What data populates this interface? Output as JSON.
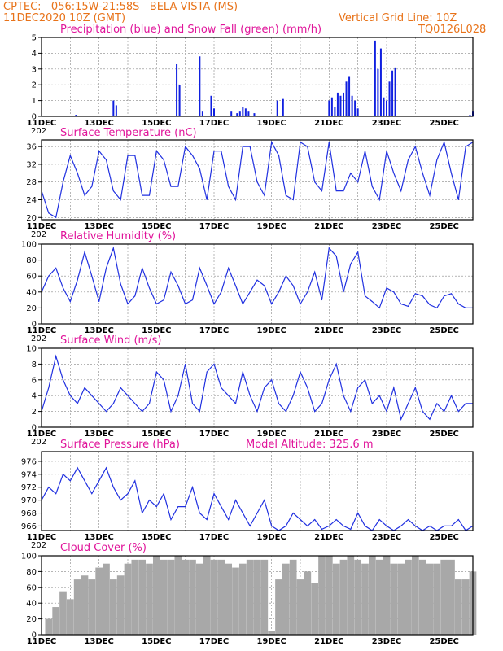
{
  "header": {
    "line1": "CPTEC:   056:15W-21:58S   BELA VISTA (MS)",
    "line2": "11DEC2020 10Z (GMT)",
    "grid_note": "Vertical Grid Line: 10Z",
    "code": "TQ0126L028"
  },
  "colors": {
    "line": "#2030e0",
    "precip": "#1020e0",
    "snow": "#20b020",
    "cloud": "#a8a8a8",
    "title": "#e0149a",
    "header": "#e8731a"
  },
  "x_labels": [
    "11DEC",
    "13DEC",
    "15DEC",
    "17DEC",
    "19DEC",
    "21DEC",
    "23DEC",
    "25DEC"
  ],
  "year_label": "202",
  "chart_data": [
    {
      "type": "bar",
      "title": "Precipitation (blue) and Snow Fall (green) (mm/h)",
      "ylim": [
        0,
        5
      ],
      "yticks": [
        "5",
        "4",
        "3",
        "2",
        "1",
        "0"
      ],
      "x": [
        1.2,
        1.7,
        2.5,
        2.6,
        4.7,
        4.8,
        5.5,
        5.6,
        5.9,
        6.0,
        6.6,
        6.8,
        6.9,
        7.0,
        7.1,
        7.2,
        7.4,
        8.2,
        8.4,
        10.0,
        10.1,
        10.2,
        10.3,
        10.4,
        10.5,
        10.6,
        10.7,
        10.8,
        10.9,
        11.0,
        11.6,
        11.7,
        11.8,
        11.9,
        12.0,
        12.1,
        12.2,
        12.3,
        14.9,
        15.0
      ],
      "values": [
        0.1,
        0.05,
        1.0,
        0.7,
        3.3,
        2.0,
        3.8,
        0.3,
        1.3,
        0.5,
        0.3,
        0.2,
        0.3,
        0.6,
        0.5,
        0.3,
        0.2,
        1.0,
        1.1,
        1.0,
        1.2,
        0.6,
        1.5,
        1.3,
        1.5,
        2.2,
        2.5,
        1.3,
        1.0,
        0.5,
        4.8,
        3.0,
        4.3,
        1.2,
        1.0,
        2.2,
        2.9,
        3.1,
        0.1,
        0.3
      ],
      "snow_values": []
    },
    {
      "type": "line",
      "title": "Surface Temperature (nC)",
      "ylim": [
        19.5,
        37.5
      ],
      "yticks": [
        "36",
        "32",
        "28",
        "24",
        "20"
      ],
      "ytick_values": [
        36,
        32,
        28,
        24,
        20
      ],
      "x": [
        0,
        0.25,
        0.5,
        0.75,
        1.0,
        1.25,
        1.5,
        1.75,
        2.0,
        2.25,
        2.5,
        2.75,
        3.0,
        3.25,
        3.5,
        3.75,
        4.0,
        4.25,
        4.5,
        4.75,
        5.0,
        5.25,
        5.5,
        5.75,
        6.0,
        6.25,
        6.5,
        6.75,
        7.0,
        7.25,
        7.5,
        7.75,
        8.0,
        8.25,
        8.5,
        8.75,
        9.0,
        9.25,
        9.5,
        9.75,
        10.0,
        10.25,
        10.5,
        10.75,
        11.0,
        11.25,
        11.5,
        11.75,
        12.0,
        12.25,
        12.5,
        12.75,
        13.0,
        13.25,
        13.5,
        13.75,
        14.0,
        14.25,
        14.5,
        14.75,
        15.0
      ],
      "values": [
        26,
        21,
        20,
        28,
        34,
        30,
        25,
        27,
        35,
        33,
        26,
        24,
        34,
        34,
        25,
        25,
        35,
        33,
        27,
        27,
        36,
        34,
        31,
        24,
        35,
        35,
        27,
        24,
        36,
        36,
        28,
        25,
        37,
        34,
        25,
        24,
        37,
        36,
        28,
        26,
        37,
        26,
        26,
        30,
        28,
        35,
        27,
        24,
        35,
        30,
        26,
        33,
        36,
        30,
        25,
        33,
        37,
        30,
        24,
        36,
        37
      ]
    },
    {
      "type": "line",
      "title": "Relative Humidity (%)",
      "ylim": [
        0,
        100
      ],
      "yticks": [
        "100",
        "80",
        "60",
        "40",
        "20",
        "0"
      ],
      "ytick_values": [
        100,
        80,
        60,
        40,
        20,
        0
      ],
      "x": [
        0,
        0.25,
        0.5,
        0.75,
        1.0,
        1.25,
        1.5,
        1.75,
        2.0,
        2.25,
        2.5,
        2.75,
        3.0,
        3.25,
        3.5,
        3.75,
        4.0,
        4.25,
        4.5,
        4.75,
        5.0,
        5.25,
        5.5,
        5.75,
        6.0,
        6.25,
        6.5,
        6.75,
        7.0,
        7.25,
        7.5,
        7.75,
        8.0,
        8.25,
        8.5,
        8.75,
        9.0,
        9.25,
        9.5,
        9.75,
        10.0,
        10.25,
        10.5,
        10.75,
        11.0,
        11.25,
        11.5,
        11.75,
        12.0,
        12.25,
        12.5,
        12.75,
        13.0,
        13.25,
        13.5,
        13.75,
        14.0,
        14.25,
        14.5,
        14.75,
        15.0
      ],
      "values": [
        40,
        60,
        70,
        45,
        28,
        55,
        90,
        60,
        28,
        70,
        95,
        50,
        25,
        35,
        70,
        45,
        25,
        30,
        65,
        48,
        25,
        30,
        70,
        48,
        25,
        40,
        70,
        48,
        25,
        40,
        55,
        48,
        25,
        40,
        60,
        48,
        25,
        40,
        65,
        30,
        95,
        85,
        40,
        75,
        90,
        35,
        28,
        20,
        45,
        40,
        25,
        22,
        38,
        35,
        24,
        20,
        35,
        38,
        25,
        20,
        20
      ]
    },
    {
      "type": "line",
      "title": "Surface Wind (m/s)",
      "ylim": [
        0,
        10
      ],
      "yticks": [
        "10",
        "8",
        "6",
        "4",
        "2",
        "0"
      ],
      "ytick_values": [
        10,
        8,
        6,
        4,
        2,
        0
      ],
      "x": [
        0,
        0.25,
        0.5,
        0.75,
        1.0,
        1.25,
        1.5,
        1.75,
        2.0,
        2.25,
        2.5,
        2.75,
        3.0,
        3.25,
        3.5,
        3.75,
        4.0,
        4.25,
        4.5,
        4.75,
        5.0,
        5.25,
        5.5,
        5.75,
        6.0,
        6.25,
        6.5,
        6.75,
        7.0,
        7.25,
        7.5,
        7.75,
        8.0,
        8.25,
        8.5,
        8.75,
        9.0,
        9.25,
        9.5,
        9.75,
        10.0,
        10.25,
        10.5,
        10.75,
        11.0,
        11.25,
        11.5,
        11.75,
        12.0,
        12.25,
        12.5,
        12.75,
        13.0,
        13.25,
        13.5,
        13.75,
        14.0,
        14.25,
        14.5,
        14.75,
        15.0
      ],
      "values": [
        2,
        5,
        9,
        6,
        4,
        3,
        5,
        4,
        3,
        2,
        3,
        5,
        4,
        3,
        2,
        3,
        7,
        6,
        2,
        4,
        8,
        3,
        2,
        7,
        8,
        5,
        4,
        3,
        7,
        4,
        2,
        5,
        6,
        3,
        2,
        4,
        7,
        5,
        2,
        3,
        6,
        8,
        4,
        2,
        5,
        6,
        3,
        4,
        2,
        5,
        1,
        3,
        5,
        2,
        1,
        3,
        2,
        4,
        2,
        3,
        3
      ]
    },
    {
      "type": "line",
      "title": "Surface Pressure (hPa)",
      "annotation": "Model Altitude: 325.6 m",
      "ylim": [
        965.3,
        977.5
      ],
      "yticks": [
        "976",
        "974",
        "972",
        "970",
        "968",
        "966"
      ],
      "ytick_values": [
        976,
        974,
        972,
        970,
        968,
        966
      ],
      "x": [
        0,
        0.25,
        0.5,
        0.75,
        1.0,
        1.25,
        1.5,
        1.75,
        2.0,
        2.25,
        2.5,
        2.75,
        3.0,
        3.25,
        3.5,
        3.75,
        4.0,
        4.25,
        4.5,
        4.75,
        5.0,
        5.25,
        5.5,
        5.75,
        6.0,
        6.25,
        6.5,
        6.75,
        7.0,
        7.25,
        7.5,
        7.75,
        8.0,
        8.25,
        8.5,
        8.75,
        9.0,
        9.25,
        9.5,
        9.75,
        10.0,
        10.25,
        10.5,
        10.75,
        11.0,
        11.25,
        11.5,
        11.75,
        12.0,
        12.25,
        12.5,
        12.75,
        13.0,
        13.25,
        13.5,
        13.75,
        14.0,
        14.25,
        14.5,
        14.75,
        15.0
      ],
      "values": [
        970,
        972,
        971,
        974,
        973,
        975,
        973,
        971,
        973,
        975,
        972,
        970,
        971,
        973,
        968,
        970,
        969,
        971,
        967,
        969,
        969,
        972,
        968,
        967,
        971,
        969,
        967,
        970,
        968,
        966,
        968,
        970,
        966,
        965.3,
        966,
        968,
        967,
        966,
        967,
        965.5,
        966,
        967,
        966,
        965.5,
        968,
        966,
        965.3,
        967,
        966,
        965.3,
        966,
        967,
        966,
        965.3,
        966,
        965.3,
        966,
        966,
        967,
        965.3,
        966
      ]
    },
    {
      "type": "bar",
      "title": "Cloud Cover (%)",
      "ylim": [
        0,
        100
      ],
      "yticks": [
        "100",
        "80",
        "60",
        "40",
        "20",
        "0"
      ],
      "x": [
        0,
        0.25,
        0.5,
        0.75,
        1.0,
        1.25,
        1.5,
        1.75,
        2.0,
        2.25,
        2.5,
        2.75,
        3.0,
        3.25,
        3.5,
        3.75,
        4.0,
        4.25,
        4.5,
        4.75,
        5.0,
        5.25,
        5.5,
        5.75,
        6.0,
        6.25,
        6.5,
        6.75,
        7.0,
        7.25,
        7.5,
        7.75,
        8.0,
        8.25,
        8.5,
        8.75,
        9.0,
        9.25,
        9.5,
        9.75,
        10.0,
        10.25,
        10.5,
        10.75,
        11.0,
        11.25,
        11.5,
        11.75,
        12.0,
        12.25,
        12.5,
        12.75,
        13.0,
        13.25,
        13.5,
        13.75,
        14.0,
        14.25,
        14.5,
        14.75,
        15.0
      ],
      "values": [
        0,
        20,
        35,
        55,
        45,
        70,
        75,
        70,
        85,
        90,
        70,
        75,
        90,
        95,
        95,
        90,
        100,
        95,
        95,
        100,
        95,
        95,
        90,
        100,
        95,
        95,
        90,
        85,
        90,
        95,
        95,
        95,
        5,
        70,
        90,
        95,
        70,
        80,
        65,
        100,
        100,
        90,
        95,
        100,
        95,
        90,
        100,
        95,
        100,
        90,
        90,
        95,
        100,
        95,
        90,
        90,
        95,
        95,
        70,
        70,
        80
      ]
    }
  ]
}
